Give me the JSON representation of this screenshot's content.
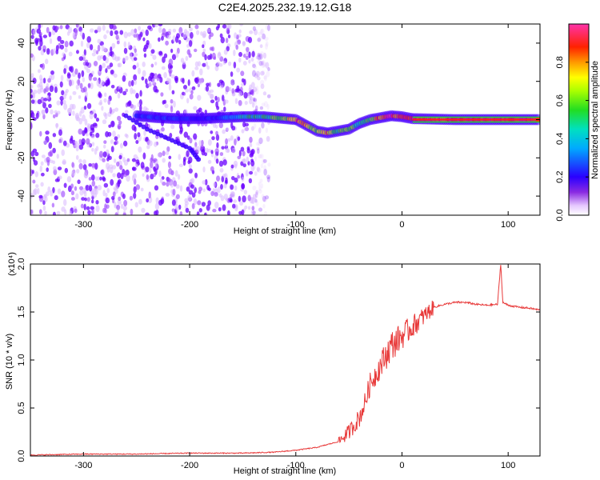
{
  "title": "C2E4.2025.232.19.12.G18",
  "colors": {
    "snr_line": "#e83a3a",
    "noise_purple": "#6a00ff",
    "track_red": "#ff1a1a",
    "track_green": "#2bd92b",
    "track_cyan": "#00cfff",
    "axis": "#000000"
  },
  "chart_data": [
    {
      "type": "heatmap",
      "title": "C2E4.2025.232.19.12.G18",
      "xlabel": "Height of straight line (km)",
      "ylabel": "Frequency (Hz)",
      "xlim": [
        -350,
        130
      ],
      "ylim": [
        -50,
        50
      ],
      "xticks": [
        -300,
        -200,
        -100,
        0,
        100
      ],
      "yticks": [
        -40,
        -20,
        0,
        20,
        40
      ],
      "colorbar": {
        "label": "Normalized spectral amplitude",
        "range": [
          0,
          1
        ],
        "ticks": [
          0.0,
          0.2,
          0.4,
          0.6,
          0.8
        ],
        "colormap": "rainbow (white→purple→blue→cyan→green→yellow→red→magenta)"
      },
      "noise_region_x": [
        -350,
        -140
      ],
      "main_track": {
        "x": [
          -250,
          -230,
          -210,
          -190,
          -170,
          -150,
          -130,
          -110,
          -100,
          -90,
          -80,
          -70,
          -60,
          -50,
          -40,
          -30,
          -20,
          -10,
          0,
          10,
          50,
          90,
          130
        ],
        "frequency": [
          2,
          1,
          0.5,
          0.5,
          1,
          1.5,
          1.5,
          0.5,
          0,
          -3,
          -6,
          -7,
          -6,
          -5,
          -2,
          0,
          1,
          2,
          1.5,
          0.5,
          0,
          0,
          0
        ],
        "amplitude": [
          0.25,
          0.25,
          0.25,
          0.2,
          0.25,
          0.45,
          0.5,
          0.6,
          0.85,
          0.7,
          0.6,
          0.75,
          0.55,
          0.6,
          0.5,
          0.6,
          0.8,
          0.9,
          0.9,
          0.9,
          0.9,
          0.9,
          0.9
        ]
      },
      "secondary_track": {
        "x": [
          -260,
          -240,
          -220,
          -200,
          -190
        ],
        "frequency": [
          2,
          -5,
          -10,
          -15,
          -22
        ]
      }
    },
    {
      "type": "line",
      "xlabel": "Height of straight line (km)",
      "ylabel": "SNR (10 * v/v)",
      "y_multiplier_label": "(x10⁴)",
      "xlim": [
        -350,
        130
      ],
      "ylim": [
        0,
        2.0
      ],
      "xticks": [
        -300,
        -200,
        -100,
        0,
        100
      ],
      "yticks": [
        0.0,
        0.5,
        1.0,
        1.5,
        2.0
      ],
      "series": [
        {
          "x": [
            -350,
            -300,
            -250,
            -200,
            -150,
            -120,
            -100,
            -80,
            -60,
            -50,
            -40,
            -35,
            -30,
            -25,
            -20,
            -15,
            -10,
            -5,
            0,
            10,
            20,
            30,
            40,
            50,
            60,
            70,
            80,
            90,
            93,
            95,
            100,
            110,
            120,
            130
          ],
          "values": [
            0.01,
            0.02,
            0.02,
            0.03,
            0.03,
            0.04,
            0.06,
            0.09,
            0.15,
            0.25,
            0.4,
            0.55,
            0.75,
            0.85,
            0.95,
            1.05,
            1.15,
            1.2,
            1.25,
            1.35,
            1.45,
            1.55,
            1.58,
            1.6,
            1.6,
            1.58,
            1.57,
            1.58,
            2.0,
            1.6,
            1.57,
            1.55,
            1.54,
            1.52
          ]
        }
      ]
    }
  ]
}
